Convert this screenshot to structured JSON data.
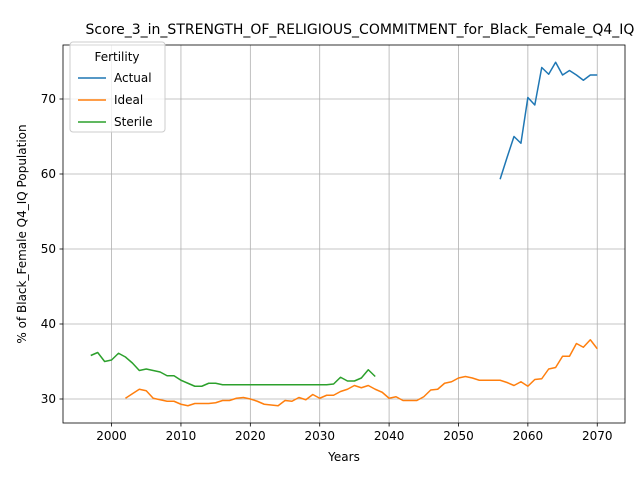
{
  "chart_data": {
    "type": "line",
    "title": "Score_3_in_STRENGTH_OF_RELIGIOUS_COMMITMENT_for_Black_Female_Q4_IQ",
    "xlabel": "Years",
    "ylabel": "% of Black_Female Q4_IQ Population",
    "xlim": [
      1993,
      2074
    ],
    "ylim": [
      26.8,
      77.2
    ],
    "xticks": [
      2000,
      2010,
      2020,
      2030,
      2040,
      2050,
      2060,
      2070
    ],
    "yticks": [
      30,
      40,
      50,
      60,
      70
    ],
    "grid": true,
    "legend": {
      "title": "Fertility",
      "placement": "top-left"
    },
    "series": [
      {
        "name": "Actual",
        "color": "#1f77b4",
        "x": [
          2056,
          2057,
          2058,
          2059,
          2060,
          2061,
          2062,
          2063,
          2064,
          2065,
          2066,
          2067,
          2068,
          2069,
          2070
        ],
        "y": [
          59.3,
          62.2,
          65.0,
          64.1,
          70.2,
          69.2,
          74.2,
          73.3,
          74.9,
          73.2,
          73.8,
          73.2,
          72.5,
          73.2,
          73.2
        ]
      },
      {
        "name": "Ideal",
        "color": "#ff7f0e",
        "x": [
          2002,
          2003,
          2004,
          2005,
          2006,
          2007,
          2008,
          2009,
          2010,
          2011,
          2012,
          2013,
          2014,
          2015,
          2016,
          2017,
          2018,
          2019,
          2020,
          2021,
          2022,
          2023,
          2024,
          2025,
          2026,
          2027,
          2028,
          2029,
          2030,
          2031,
          2032,
          2033,
          2034,
          2035,
          2036,
          2037,
          2038,
          2039,
          2040,
          2041,
          2042,
          2043,
          2044,
          2045,
          2046,
          2047,
          2048,
          2049,
          2050,
          2051,
          2052,
          2053,
          2054,
          2055,
          2056,
          2057,
          2058,
          2059,
          2060,
          2061,
          2062,
          2063,
          2064,
          2065,
          2066,
          2067,
          2068,
          2069,
          2070
        ],
        "y": [
          30.1,
          30.7,
          31.3,
          31.1,
          30.1,
          29.9,
          29.7,
          29.7,
          29.3,
          29.1,
          29.4,
          29.4,
          29.4,
          29.5,
          29.8,
          29.8,
          30.1,
          30.2,
          30.0,
          29.7,
          29.3,
          29.2,
          29.1,
          29.8,
          29.7,
          30.2,
          29.9,
          30.6,
          30.1,
          30.5,
          30.5,
          31.0,
          31.3,
          31.8,
          31.5,
          31.8,
          31.3,
          30.9,
          30.1,
          30.3,
          29.8,
          29.8,
          29.8,
          30.3,
          31.2,
          31.3,
          32.1,
          32.3,
          32.8,
          33.0,
          32.8,
          32.5,
          32.5,
          32.5,
          32.5,
          32.2,
          31.8,
          32.3,
          31.7,
          32.6,
          32.7,
          34.0,
          34.2,
          35.7,
          35.7,
          37.4,
          36.9,
          37.9,
          36.7
        ]
      },
      {
        "name": "Sterile",
        "color": "#2ca02c",
        "x": [
          1997,
          1998,
          1999,
          2000,
          2001,
          2002,
          2003,
          2004,
          2005,
          2006,
          2007,
          2008,
          2009,
          2010,
          2011,
          2012,
          2013,
          2014,
          2015,
          2016,
          2017,
          2018,
          2019,
          2020,
          2021,
          2022,
          2023,
          2024,
          2025,
          2026,
          2027,
          2028,
          2029,
          2030,
          2031,
          2032,
          2033,
          2034,
          2035,
          2036,
          2037,
          2038
        ],
        "y": [
          35.8,
          36.2,
          35.0,
          35.2,
          36.1,
          35.6,
          34.8,
          33.8,
          34.0,
          33.8,
          33.6,
          33.1,
          33.1,
          32.5,
          32.1,
          31.7,
          31.7,
          32.1,
          32.1,
          31.9,
          31.9,
          31.9,
          31.9,
          31.9,
          31.9,
          31.9,
          31.9,
          31.9,
          31.9,
          31.9,
          31.9,
          31.9,
          31.9,
          31.9,
          31.9,
          32.0,
          32.9,
          32.4,
          32.4,
          32.8,
          33.9,
          33.0
        ]
      }
    ]
  }
}
